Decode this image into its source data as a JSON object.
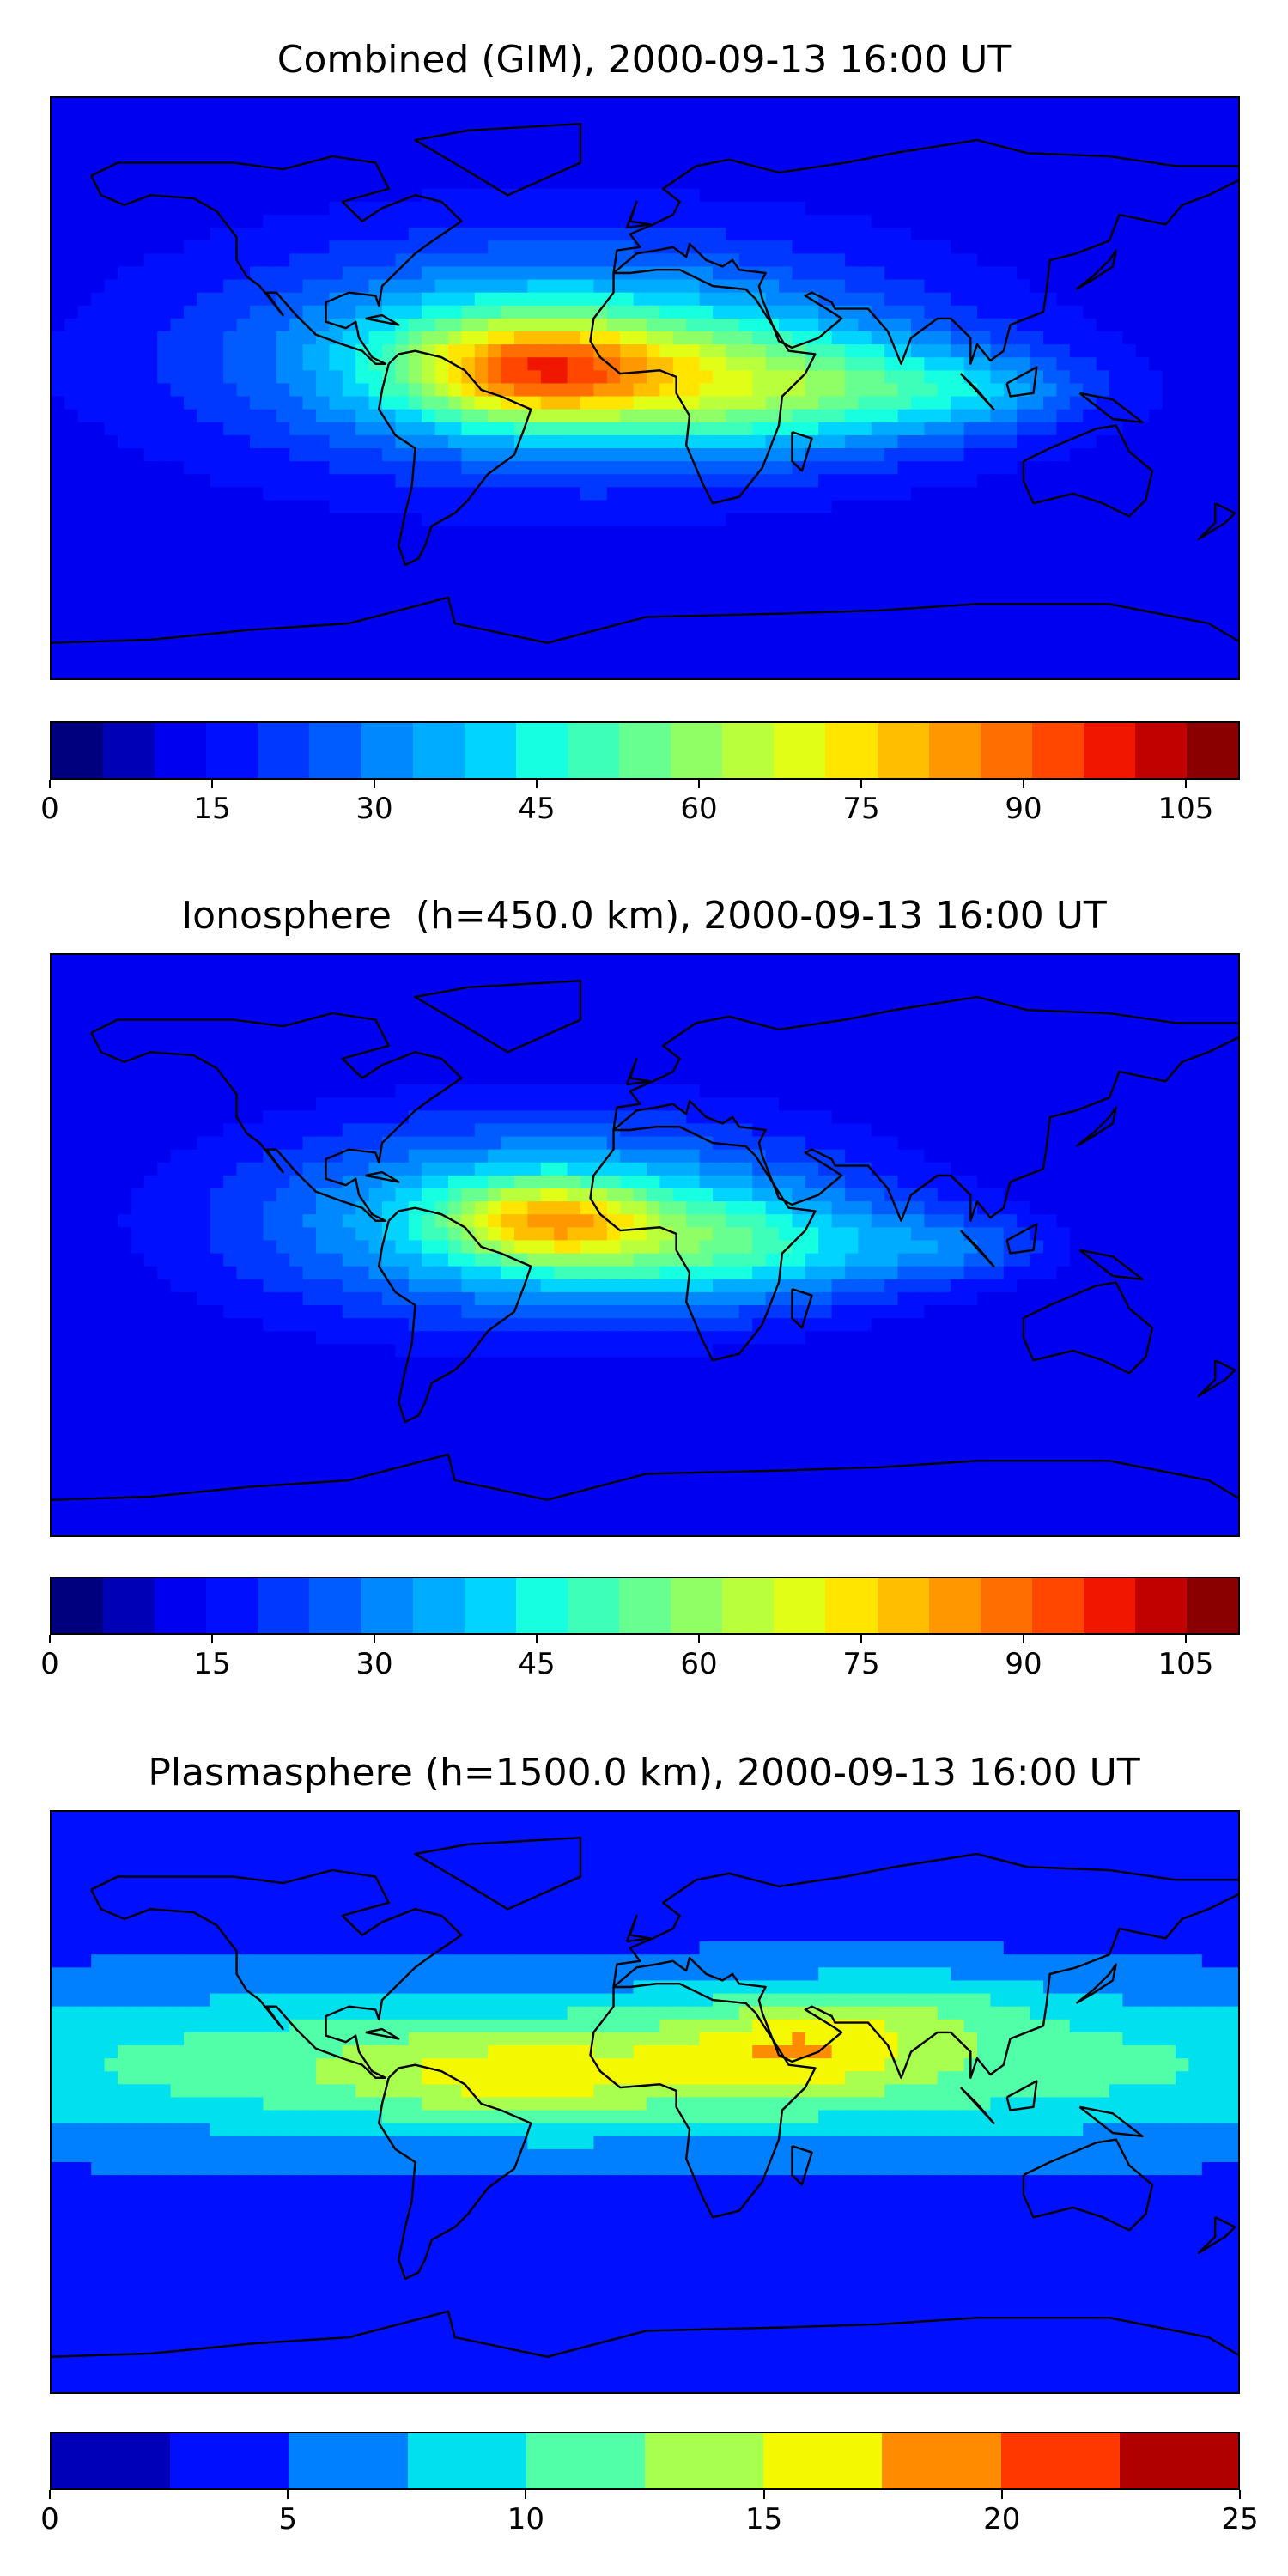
{
  "panels": [
    {
      "title": "Combined (GIM), 2000-09-13 16:00 UT",
      "colorbar": {
        "min": 0,
        "max": 110,
        "step": 5,
        "colors": [
          "#00007f",
          "#0000b6",
          "#0000f1",
          "#0010ff",
          "#0038ff",
          "#005cff",
          "#0088ff",
          "#00acff",
          "#00d4ff",
          "#16ffe1",
          "#3dffba",
          "#66ff90",
          "#90ff66",
          "#baff3c",
          "#e1ff16",
          "#ffe500",
          "#ffbe00",
          "#ff9800",
          "#ff6e00",
          "#ff4700",
          "#f11600",
          "#c10000",
          "#8a0000"
        ],
        "tick_labels": [
          "0",
          "15",
          "30",
          "45",
          "60",
          "75",
          "90",
          "105"
        ]
      },
      "field": {
        "background_level": 12,
        "blobs": [
          {
            "lon": -25,
            "lat": 10,
            "rlon": 95,
            "rlat": 32,
            "amp": 42
          },
          {
            "lon": -35,
            "lat": 6,
            "rlon": 38,
            "rlat": 15,
            "amp": 42
          },
          {
            "lon": 40,
            "lat": 0,
            "rlon": 60,
            "rlat": 18,
            "amp": 30
          },
          {
            "lon": 100,
            "lat": 0,
            "rlon": 35,
            "rlat": 12,
            "amp": 15
          }
        ]
      }
    },
    {
      "title": "Ionosphere  (h=450.0 km), 2000-09-13 16:00 UT",
      "colorbar": {
        "min": 0,
        "max": 110,
        "step": 5,
        "colors": [
          "#00007f",
          "#0000b6",
          "#0000f1",
          "#0010ff",
          "#0038ff",
          "#005cff",
          "#0088ff",
          "#00acff",
          "#00d4ff",
          "#16ffe1",
          "#3dffba",
          "#66ff90",
          "#90ff66",
          "#baff3c",
          "#e1ff16",
          "#ffe500",
          "#ffbe00",
          "#ff9800",
          "#ff6e00",
          "#ff4700",
          "#f11600",
          "#c10000",
          "#8a0000"
        ],
        "tick_labels": [
          "0",
          "15",
          "30",
          "45",
          "60",
          "75",
          "90",
          "105"
        ]
      },
      "field": {
        "background_level": 10,
        "blobs": [
          {
            "lon": -30,
            "lat": 8,
            "rlon": 90,
            "rlat": 30,
            "amp": 38
          },
          {
            "lon": -30,
            "lat": 8,
            "rlon": 30,
            "rlat": 12,
            "amp": 35
          },
          {
            "lon": 30,
            "lat": 0,
            "rlon": 55,
            "rlat": 16,
            "amp": 22
          },
          {
            "lon": 95,
            "lat": 0,
            "rlon": 28,
            "rlat": 10,
            "amp": 12
          }
        ]
      }
    },
    {
      "title": "Plasmasphere (h=1500.0 km), 2000-09-13 16:00 UT",
      "colorbar": {
        "min": 0,
        "max": 25,
        "step": 2.5,
        "colors": [
          "#0000b8",
          "#0010ff",
          "#0080ff",
          "#00e0ef",
          "#50ffa8",
          "#a8ff50",
          "#f4f800",
          "#ff8c00",
          "#ff3800",
          "#b00000"
        ],
        "tick_labels": [
          "0",
          "5",
          "10",
          "15",
          "20",
          "25"
        ]
      },
      "field": {
        "background_level": 4,
        "blobs": [
          {
            "lon": 0,
            "lat": 12,
            "rlon": 260,
            "rlat": 24,
            "amp": 9
          },
          {
            "lon": -40,
            "lat": 8,
            "rlon": 50,
            "rlat": 12,
            "amp": 4
          },
          {
            "lon": 45,
            "lat": 18,
            "rlon": 35,
            "rlat": 14,
            "amp": 5
          },
          {
            "lon": 80,
            "lat": 30,
            "rlon": 40,
            "rlat": 12,
            "amp": 3
          }
        ]
      }
    }
  ]
}
